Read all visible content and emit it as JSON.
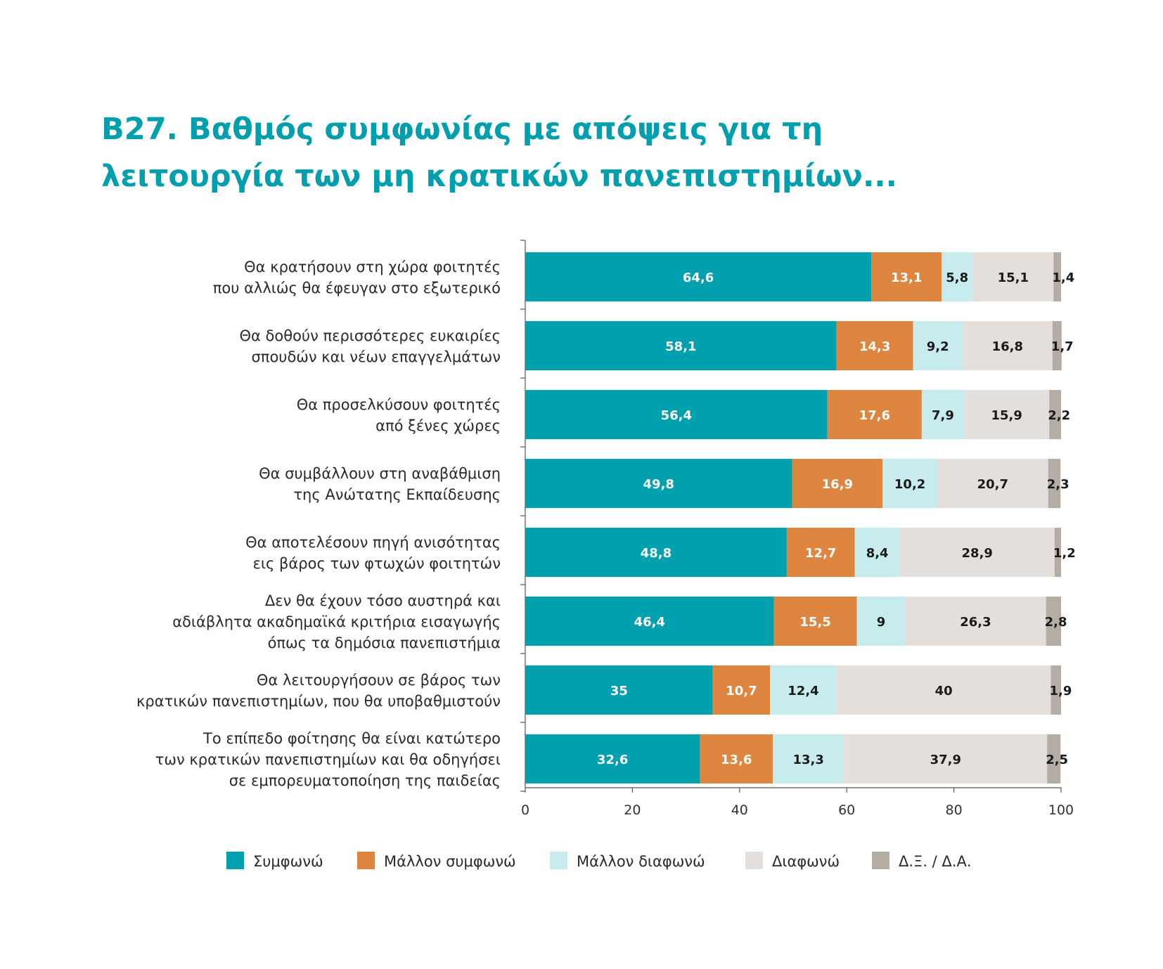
{
  "chart_data": {
    "type": "bar",
    "orientation": "horizontal",
    "stacked": true,
    "title_lines": [
      "B27. Βαθμός συμφωνίας με απόψεις για τη",
      "λειτουργία των μη κρατικών πανεπιστημίων..."
    ],
    "categories": [
      [
        "Θα κρατήσουν στη χώρα φοιτητές",
        "που αλλιώς θα έφευγαν στο εξωτερικό"
      ],
      [
        "Θα δοθούν περισσότερες ευκαιρίες",
        "σπουδών και νέων επαγγελμάτων"
      ],
      [
        "Θα προσελκύσουν φοιτητές",
        "από ξένες χώρες"
      ],
      [
        "Θα συμβάλλουν στη αναβάθμιση",
        "της Ανώτατης Εκπαίδευσης"
      ],
      [
        "Θα αποτελέσουν πηγή ανισότητας",
        "εις βάρος των φτωχών φοιτητών"
      ],
      [
        "Δεν θα έχουν τόσο αυστηρά και",
        "αδιάβλητα ακαδημαϊκά κριτήρια εισαγωγής",
        "όπως τα δημόσια πανεπιστήμια"
      ],
      [
        "Θα λειτουργήσουν σε βάρος των",
        "κρατικών πανεπιστημίων, που θα υποβαθμιστούν"
      ],
      [
        "Το επίπεδο φοίτησης θα είναι κατώτερο",
        "των κρατικών πανεπιστημίων και θα οδηγήσει",
        "σε εμπορευματοποίηση της παιδείας"
      ]
    ],
    "series": [
      {
        "name": "Συμφωνώ",
        "color": "#00A0AF",
        "label_color": "#ffffff",
        "values": [
          64.6,
          58.1,
          56.4,
          49.8,
          48.8,
          46.4,
          35,
          32.6
        ],
        "labels": [
          "64,6",
          "58,1",
          "56,4",
          "49,8",
          "48,8",
          "46,4",
          "35",
          "32,6"
        ]
      },
      {
        "name": "Μάλλον συμφωνώ",
        "color": "#DE853F",
        "label_color": "#ffffff",
        "values": [
          13.1,
          14.3,
          17.6,
          16.9,
          12.7,
          15.5,
          10.7,
          13.6
        ],
        "labels": [
          "13,1",
          "14,3",
          "17,6",
          "16,9",
          "12,7",
          "15,5",
          "10,7",
          "13,6"
        ]
      },
      {
        "name": "Μάλλον διαφωνώ",
        "color": "#C8EBEE",
        "label_color": "#1a1a1a",
        "values": [
          5.8,
          9.2,
          7.9,
          10.2,
          8.4,
          9,
          12.4,
          13.3
        ],
        "labels": [
          "5,8",
          "9,2",
          "7,9",
          "10,2",
          "8,4",
          "9",
          "12,4",
          "13,3"
        ]
      },
      {
        "name": "Διαφωνώ",
        "color": "#E4DFDB",
        "label_color": "#1a1a1a",
        "values": [
          15.1,
          16.8,
          15.9,
          20.7,
          28.9,
          26.3,
          40,
          37.9
        ],
        "labels": [
          "15,1",
          "16,8",
          "15,9",
          "20,7",
          "28,9",
          "26,3",
          "40",
          "37,9"
        ]
      },
      {
        "name": "Δ.Ξ. / Δ.Α.",
        "color": "#B4ADA3",
        "label_color": "#1a1a1a",
        "values": [
          1.4,
          1.7,
          2.2,
          2.3,
          1.2,
          2.8,
          1.9,
          2.5
        ],
        "labels": [
          "1,4",
          "1,7",
          "2,2",
          "2,3",
          "1,2",
          "2,8",
          "1,9",
          "2,5"
        ]
      }
    ],
    "xlim": [
      0,
      100
    ],
    "xticks": [
      0,
      20,
      40,
      60,
      80,
      100
    ],
    "xlabel": "",
    "ylabel": "",
    "grid": false,
    "legend_position": "bottom"
  }
}
